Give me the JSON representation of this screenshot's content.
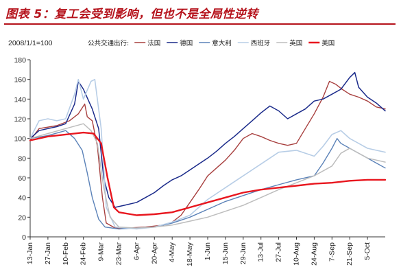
{
  "title": "图表 5：复工会受到影响，但也不是全局性逆转",
  "colors": {
    "title": "#b5121b",
    "axis": "#333333"
  },
  "chart_data": {
    "type": "line",
    "ylabel": "2008/1/1=100",
    "ylim": [
      0,
      180
    ],
    "yticks": [
      0,
      20,
      40,
      60,
      80,
      100,
      120,
      140,
      160,
      180
    ],
    "x_start": "13-Jan",
    "x_end": "19-Oct",
    "xtick_labels": [
      "13-Jan",
      "27-Jan",
      "10-Feb",
      "24-Feb",
      "9-Mar",
      "23-Mar",
      "6-Apr",
      "20-Apr",
      "4-May",
      "18-May",
      "1-Jun",
      "15-Jun",
      "29-Jun",
      "13-Jul",
      "27-Jul",
      "10-Aug",
      "24-Aug",
      "7-Sep",
      "21-Sep",
      "5-Oct"
    ],
    "legend_prefix": "公共交通出行:",
    "legend_position": "top",
    "grid": false,
    "series": [
      {
        "name": "法国",
        "color": "#a8403f",
        "width": 1.4,
        "points": [
          [
            "13-Jan",
            98
          ],
          [
            "20-Jan",
            110
          ],
          [
            "3-Feb",
            113
          ],
          [
            "13-Feb",
            118
          ],
          [
            "20-Feb",
            125
          ],
          [
            "25-Feb",
            135
          ],
          [
            "27-Feb",
            122
          ],
          [
            "2-Mar",
            118
          ],
          [
            "6-Mar",
            92
          ],
          [
            "10-Mar",
            40
          ],
          [
            "13-Mar",
            14
          ],
          [
            "20-Mar",
            9
          ],
          [
            "30-Mar",
            9
          ],
          [
            "13-Apr",
            10
          ],
          [
            "27-Apr",
            12
          ],
          [
            "4-May",
            15
          ],
          [
            "11-May",
            22
          ],
          [
            "18-May",
            35
          ],
          [
            "25-May",
            48
          ],
          [
            "1-Jun",
            62
          ],
          [
            "8-Jun",
            70
          ],
          [
            "15-Jun",
            78
          ],
          [
            "22-Jun",
            88
          ],
          [
            "29-Jun",
            100
          ],
          [
            "6-Jul",
            105
          ],
          [
            "13-Jul",
            102
          ],
          [
            "20-Jul",
            98
          ],
          [
            "27-Jul",
            95
          ],
          [
            "3-Aug",
            93
          ],
          [
            "10-Aug",
            95
          ],
          [
            "17-Aug",
            110
          ],
          [
            "24-Aug",
            125
          ],
          [
            "31-Aug",
            142
          ],
          [
            "5-Sep",
            158
          ],
          [
            "10-Sep",
            155
          ],
          [
            "15-Sep",
            150
          ],
          [
            "21-Sep",
            145
          ],
          [
            "28-Sep",
            142
          ],
          [
            "5-Oct",
            138
          ],
          [
            "12-Oct",
            132
          ],
          [
            "19-Oct",
            130
          ]
        ]
      },
      {
        "name": "德国",
        "color": "#1a2a8a",
        "width": 1.5,
        "points": [
          [
            "13-Jan",
            100
          ],
          [
            "20-Jan",
            108
          ],
          [
            "27-Jan",
            110
          ],
          [
            "3-Feb",
            112
          ],
          [
            "10-Feb",
            115
          ],
          [
            "17-Feb",
            135
          ],
          [
            "20-Feb",
            158
          ],
          [
            "24-Feb",
            150
          ],
          [
            "2-Mar",
            130
          ],
          [
            "7-Mar",
            110
          ],
          [
            "11-Mar",
            60
          ],
          [
            "15-Mar",
            40
          ],
          [
            "20-Mar",
            30
          ],
          [
            "27-Mar",
            32
          ],
          [
            "6-Apr",
            35
          ],
          [
            "13-Apr",
            40
          ],
          [
            "20-Apr",
            45
          ],
          [
            "27-Apr",
            52
          ],
          [
            "4-May",
            58
          ],
          [
            "11-May",
            62
          ],
          [
            "18-May",
            68
          ],
          [
            "25-May",
            74
          ],
          [
            "1-Jun",
            80
          ],
          [
            "8-Jun",
            87
          ],
          [
            "15-Jun",
            95
          ],
          [
            "22-Jun",
            102
          ],
          [
            "29-Jun",
            110
          ],
          [
            "6-Jul",
            118
          ],
          [
            "13-Jul",
            126
          ],
          [
            "20-Jul",
            133
          ],
          [
            "27-Jul",
            128
          ],
          [
            "3-Aug",
            120
          ],
          [
            "10-Aug",
            125
          ],
          [
            "17-Aug",
            130
          ],
          [
            "24-Aug",
            138
          ],
          [
            "31-Aug",
            140
          ],
          [
            "7-Sep",
            145
          ],
          [
            "14-Sep",
            150
          ],
          [
            "21-Sep",
            162
          ],
          [
            "25-Sep",
            167
          ],
          [
            "28-Sep",
            152
          ],
          [
            "5-Oct",
            142
          ],
          [
            "12-Oct",
            136
          ],
          [
            "19-Oct",
            128
          ]
        ]
      },
      {
        "name": "意大利",
        "color": "#5b82b8",
        "width": 1.4,
        "points": [
          [
            "13-Jan",
            100
          ],
          [
            "27-Jan",
            103
          ],
          [
            "10-Feb",
            108
          ],
          [
            "17-Feb",
            100
          ],
          [
            "23-Feb",
            88
          ],
          [
            "27-Feb",
            65
          ],
          [
            "2-Mar",
            40
          ],
          [
            "7-Mar",
            18
          ],
          [
            "12-Mar",
            10
          ],
          [
            "23-Mar",
            8
          ],
          [
            "6-Apr",
            9
          ],
          [
            "20-Apr",
            10
          ],
          [
            "4-May",
            14
          ],
          [
            "18-May",
            20
          ],
          [
            "1-Jun",
            28
          ],
          [
            "15-Jun",
            36
          ],
          [
            "29-Jun",
            42
          ],
          [
            "13-Jul",
            48
          ],
          [
            "27-Jul",
            53
          ],
          [
            "10-Aug",
            58
          ],
          [
            "24-Aug",
            62
          ],
          [
            "31-Aug",
            75
          ],
          [
            "7-Sep",
            90
          ],
          [
            "11-Sep",
            100
          ],
          [
            "14-Sep",
            95
          ],
          [
            "21-Sep",
            90
          ],
          [
            "28-Sep",
            85
          ],
          [
            "5-Oct",
            80
          ],
          [
            "12-Oct",
            75
          ],
          [
            "19-Oct",
            70
          ]
        ]
      },
      {
        "name": "西班牙",
        "color": "#b7cde6",
        "width": 1.6,
        "points": [
          [
            "13-Jan",
            100
          ],
          [
            "20-Jan",
            118
          ],
          [
            "27-Jan",
            120
          ],
          [
            "3-Feb",
            118
          ],
          [
            "10-Feb",
            120
          ],
          [
            "17-Feb",
            145
          ],
          [
            "20-Feb",
            160
          ],
          [
            "24-Feb",
            140
          ],
          [
            "1-Mar",
            158
          ],
          [
            "4-Mar",
            160
          ],
          [
            "9-Mar",
            110
          ],
          [
            "13-Mar",
            30
          ],
          [
            "20-Mar",
            10
          ],
          [
            "6-Apr",
            8
          ],
          [
            "20-Apr",
            10
          ],
          [
            "4-May",
            15
          ],
          [
            "18-May",
            22
          ],
          [
            "1-Jun",
            38
          ],
          [
            "15-Jun",
            50
          ],
          [
            "29-Jun",
            62
          ],
          [
            "13-Jul",
            74
          ],
          [
            "27-Jul",
            86
          ],
          [
            "10-Aug",
            88
          ],
          [
            "24-Aug",
            82
          ],
          [
            "31-Aug",
            92
          ],
          [
            "7-Sep",
            104
          ],
          [
            "14-Sep",
            108
          ],
          [
            "21-Sep",
            100
          ],
          [
            "28-Sep",
            95
          ],
          [
            "5-Oct",
            90
          ],
          [
            "12-Oct",
            88
          ],
          [
            "19-Oct",
            86
          ]
        ]
      },
      {
        "name": "英国",
        "color": "#bdbdbd",
        "width": 1.5,
        "points": [
          [
            "13-Jan",
            100
          ],
          [
            "27-Jan",
            105
          ],
          [
            "10-Feb",
            110
          ],
          [
            "24-Feb",
            115
          ],
          [
            "1-Mar",
            108
          ],
          [
            "6-Mar",
            95
          ],
          [
            "11-Mar",
            50
          ],
          [
            "16-Mar",
            20
          ],
          [
            "23-Mar",
            10
          ],
          [
            "6-Apr",
            9
          ],
          [
            "20-Apr",
            10
          ],
          [
            "4-May",
            12
          ],
          [
            "18-May",
            16
          ],
          [
            "1-Jun",
            20
          ],
          [
            "15-Jun",
            26
          ],
          [
            "29-Jun",
            32
          ],
          [
            "13-Jul",
            40
          ],
          [
            "27-Jul",
            48
          ],
          [
            "10-Aug",
            55
          ],
          [
            "24-Aug",
            62
          ],
          [
            "7-Sep",
            72
          ],
          [
            "14-Sep",
            85
          ],
          [
            "21-Sep",
            90
          ],
          [
            "28-Sep",
            85
          ],
          [
            "5-Oct",
            80
          ],
          [
            "12-Oct",
            78
          ],
          [
            "19-Oct",
            76
          ]
        ]
      },
      {
        "name": "美国",
        "color": "#e8161e",
        "width": 2.4,
        "points": [
          [
            "13-Jan",
            98
          ],
          [
            "27-Jan",
            102
          ],
          [
            "10-Feb",
            104
          ],
          [
            "24-Feb",
            106
          ],
          [
            "3-Mar",
            105
          ],
          [
            "9-Mar",
            95
          ],
          [
            "14-Mar",
            60
          ],
          [
            "19-Mar",
            30
          ],
          [
            "23-Mar",
            25
          ],
          [
            "6-Apr",
            22
          ],
          [
            "20-Apr",
            23
          ],
          [
            "4-May",
            25
          ],
          [
            "18-May",
            30
          ],
          [
            "1-Jun",
            35
          ],
          [
            "15-Jun",
            40
          ],
          [
            "29-Jun",
            45
          ],
          [
            "13-Jul",
            48
          ],
          [
            "27-Jul",
            50
          ],
          [
            "10-Aug",
            52
          ],
          [
            "24-Aug",
            54
          ],
          [
            "7-Sep",
            55
          ],
          [
            "21-Sep",
            57
          ],
          [
            "5-Oct",
            58
          ],
          [
            "19-Oct",
            58
          ]
        ]
      }
    ]
  }
}
